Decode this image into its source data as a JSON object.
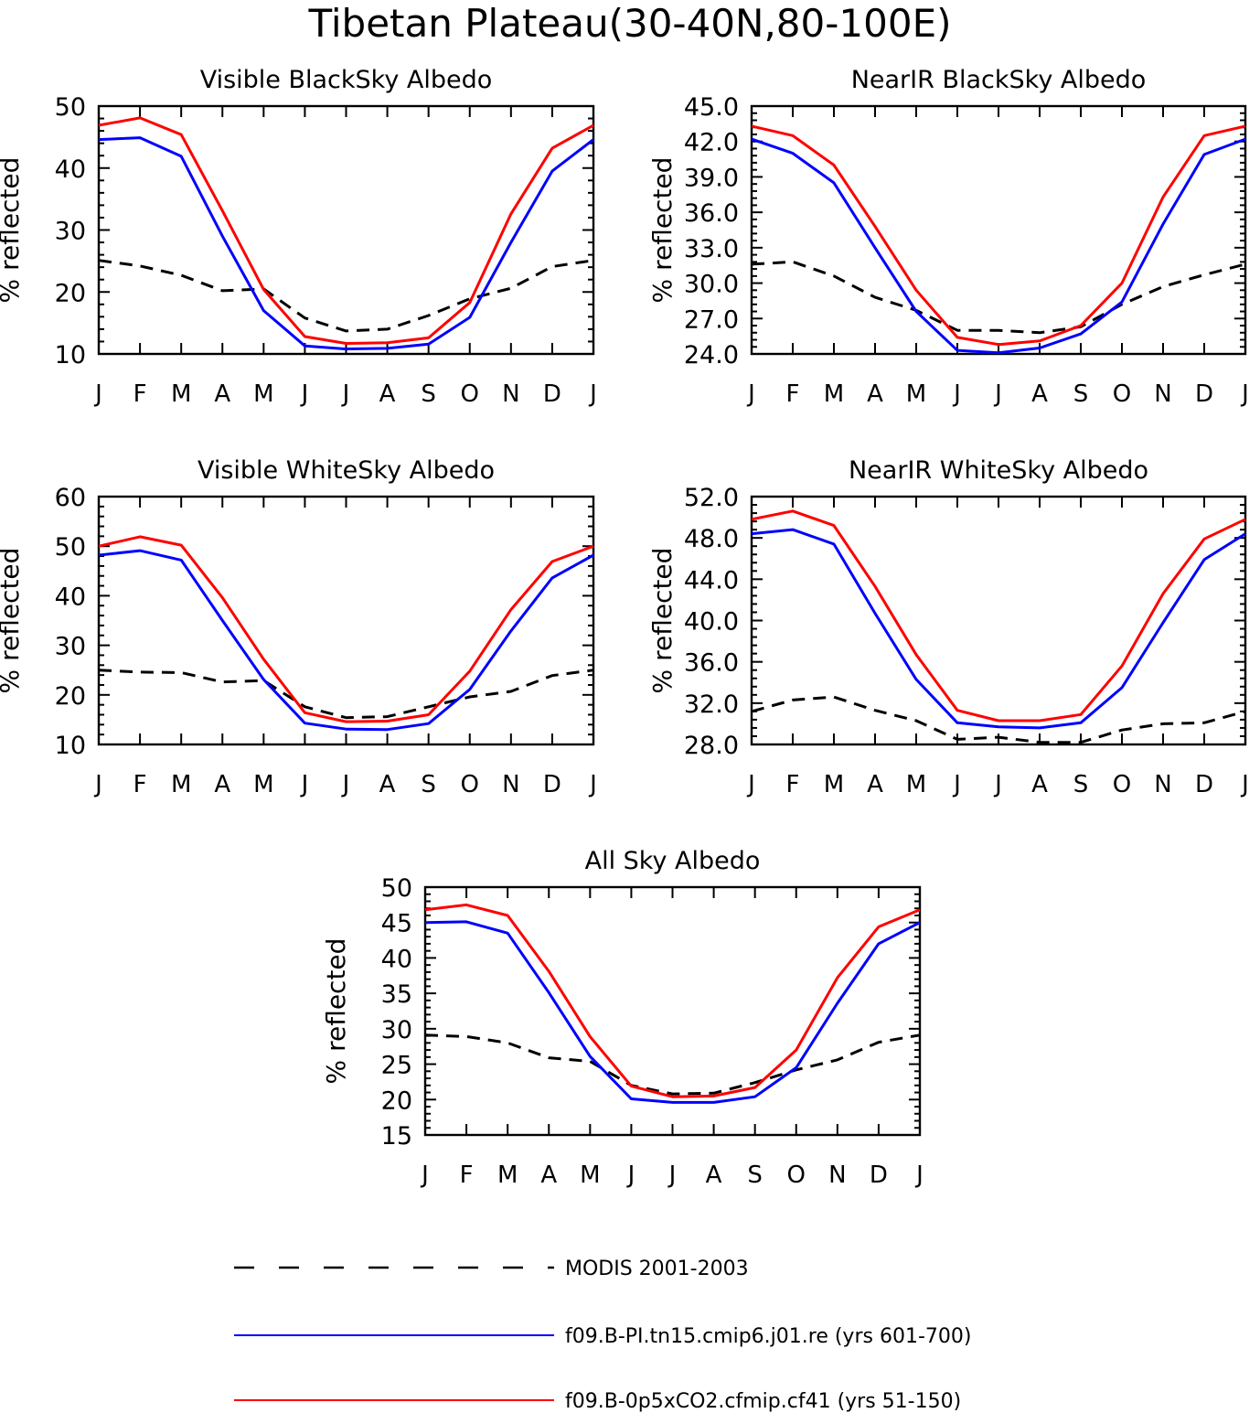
{
  "figure_title": "Tibetan Plateau(30-40N,80-100E)",
  "colors": {
    "obs": "#000000",
    "model1": "#0000ff",
    "model2": "#ff0000"
  },
  "legend": {
    "entries": [
      {
        "label": "MODIS 2001-2003",
        "color": "#000000",
        "dash": true
      },
      {
        "label": "f09.B-PI.tn15.cmip6.j01.re (yrs 601-700)",
        "color": "#0000ff",
        "dash": false
      },
      {
        "label": "f09.B-0p5xCO2.cfmip.cf41 (yrs 51-150)",
        "color": "#ff0000",
        "dash": false
      }
    ]
  },
  "chart_data": [
    {
      "type": "line",
      "title": "Visible BlackSky Albedo",
      "ylabel": "% reflected",
      "xlabel": "",
      "categories": [
        "J",
        "F",
        "M",
        "A",
        "M",
        "J",
        "J",
        "A",
        "S",
        "O",
        "N",
        "D",
        "J"
      ],
      "ylim": [
        10,
        50
      ],
      "yticks": [
        "10",
        "20",
        "30",
        "40",
        "50"
      ],
      "series": [
        {
          "name": "MODIS 2001-2003",
          "values": [
            25.1,
            24.2,
            22.7,
            20.2,
            20.5,
            15.8,
            13.7,
            14.0,
            16.2,
            18.9,
            20.6,
            24.1,
            25.1
          ]
        },
        {
          "name": "f09.B-PI.tn15.cmip6.j01.re (yrs 601-700)",
          "values": [
            44.6,
            44.9,
            41.9,
            29.0,
            17.0,
            11.3,
            10.8,
            10.9,
            11.6,
            15.9,
            28.0,
            39.5,
            44.6
          ]
        },
        {
          "name": "f09.B-0p5xCO2.cfmip.cf41 (yrs 51-150)",
          "values": [
            46.9,
            48.1,
            45.4,
            33.1,
            20.4,
            12.8,
            11.7,
            11.8,
            12.6,
            18.3,
            32.6,
            43.2,
            46.9
          ]
        }
      ]
    },
    {
      "type": "line",
      "title": "NearIR BlackSky Albedo",
      "ylabel": "% reflected",
      "xlabel": "",
      "categories": [
        "J",
        "F",
        "M",
        "A",
        "M",
        "J",
        "J",
        "A",
        "S",
        "O",
        "N",
        "D",
        "J"
      ],
      "ylim": [
        24,
        45
      ],
      "yticks": [
        "24.0",
        "27.0",
        "30.0",
        "33.0",
        "36.0",
        "39.0",
        "42.0",
        "45.0"
      ],
      "series": [
        {
          "name": "MODIS 2001-2003",
          "values": [
            31.6,
            31.8,
            30.6,
            28.8,
            27.7,
            26.0,
            26.0,
            25.8,
            26.3,
            28.2,
            29.7,
            30.7,
            31.6
          ]
        },
        {
          "name": "f09.B-PI.tn15.cmip6.j01.re (yrs 601-700)",
          "values": [
            42.2,
            41.0,
            38.5,
            33.0,
            27.6,
            24.3,
            24.1,
            24.5,
            25.7,
            28.4,
            35.0,
            40.9,
            42.2
          ]
        },
        {
          "name": "f09.B-0p5xCO2.cfmip.cf41 (yrs 51-150)",
          "values": [
            43.3,
            42.5,
            40.0,
            34.8,
            29.4,
            25.4,
            24.8,
            25.1,
            26.4,
            30.0,
            37.3,
            42.5,
            43.3
          ]
        }
      ]
    },
    {
      "type": "line",
      "title": "Visible WhiteSky Albedo",
      "ylabel": "% reflected",
      "xlabel": "",
      "categories": [
        "J",
        "F",
        "M",
        "A",
        "M",
        "J",
        "J",
        "A",
        "S",
        "O",
        "N",
        "D",
        "J"
      ],
      "ylim": [
        10,
        60
      ],
      "yticks": [
        "10",
        "20",
        "30",
        "40",
        "50",
        "60"
      ],
      "series": [
        {
          "name": "MODIS 2001-2003",
          "values": [
            25.0,
            24.6,
            24.5,
            22.6,
            22.9,
            17.6,
            15.4,
            15.6,
            17.6,
            19.6,
            20.7,
            23.9,
            25.0
          ]
        },
        {
          "name": "f09.B-PI.tn15.cmip6.j01.re (yrs 601-700)",
          "values": [
            48.2,
            49.1,
            47.2,
            35.0,
            23.1,
            14.3,
            13.1,
            13.0,
            14.2,
            21.1,
            32.9,
            43.6,
            48.2
          ]
        },
        {
          "name": "f09.B-0p5xCO2.cfmip.cf41 (yrs 51-150)",
          "values": [
            50.0,
            51.9,
            50.2,
            39.6,
            27.2,
            16.4,
            14.6,
            14.7,
            16.0,
            24.8,
            37.2,
            46.9,
            50.0
          ]
        }
      ]
    },
    {
      "type": "line",
      "title": "NearIR WhiteSky Albedo",
      "ylabel": "% reflected",
      "xlabel": "",
      "categories": [
        "J",
        "F",
        "M",
        "A",
        "M",
        "J",
        "J",
        "A",
        "S",
        "O",
        "N",
        "D",
        "J"
      ],
      "ylim": [
        28,
        52
      ],
      "yticks": [
        "28.0",
        "32.0",
        "36.0",
        "40.0",
        "44.0",
        "48.0",
        "52.0"
      ],
      "series": [
        {
          "name": "MODIS 2001-2003",
          "values": [
            31.2,
            32.3,
            32.6,
            31.3,
            30.3,
            28.5,
            28.7,
            28.2,
            28.2,
            29.4,
            30.0,
            30.1,
            31.2
          ]
        },
        {
          "name": "f09.B-PI.tn15.cmip6.j01.re (yrs 601-700)",
          "values": [
            48.4,
            48.8,
            47.4,
            40.7,
            34.3,
            30.1,
            29.7,
            29.6,
            30.1,
            33.5,
            39.8,
            45.9,
            48.4
          ]
        },
        {
          "name": "f09.B-0p5xCO2.cfmip.cf41 (yrs 51-150)",
          "values": [
            49.8,
            50.6,
            49.2,
            43.3,
            36.7,
            31.3,
            30.3,
            30.3,
            30.9,
            35.6,
            42.6,
            47.9,
            49.8
          ]
        }
      ]
    },
    {
      "type": "line",
      "title": "All Sky Albedo",
      "ylabel": "% reflected",
      "xlabel": "",
      "categories": [
        "J",
        "F",
        "M",
        "A",
        "M",
        "J",
        "J",
        "A",
        "S",
        "O",
        "N",
        "D",
        "J"
      ],
      "ylim": [
        15,
        50
      ],
      "yticks": [
        "15",
        "20",
        "25",
        "30",
        "35",
        "40",
        "45",
        "50"
      ],
      "series": [
        {
          "name": "MODIS 2001-2003",
          "values": [
            29.1,
            28.9,
            28.0,
            25.9,
            25.4,
            22.0,
            20.8,
            20.9,
            22.4,
            24.2,
            25.6,
            28.1,
            29.1
          ]
        },
        {
          "name": "f09.B-PI.tn15.cmip6.j01.re (yrs 601-700)",
          "values": [
            45.0,
            45.1,
            43.5,
            35.1,
            26.1,
            20.1,
            19.6,
            19.6,
            20.4,
            24.5,
            33.6,
            42.0,
            45.0
          ]
        },
        {
          "name": "f09.B-0p5xCO2.cfmip.cf41 (yrs 51-150)",
          "values": [
            46.8,
            47.5,
            46.0,
            38.1,
            28.9,
            21.9,
            20.4,
            20.5,
            21.7,
            27.0,
            37.2,
            44.4,
            46.8
          ]
        }
      ]
    }
  ]
}
